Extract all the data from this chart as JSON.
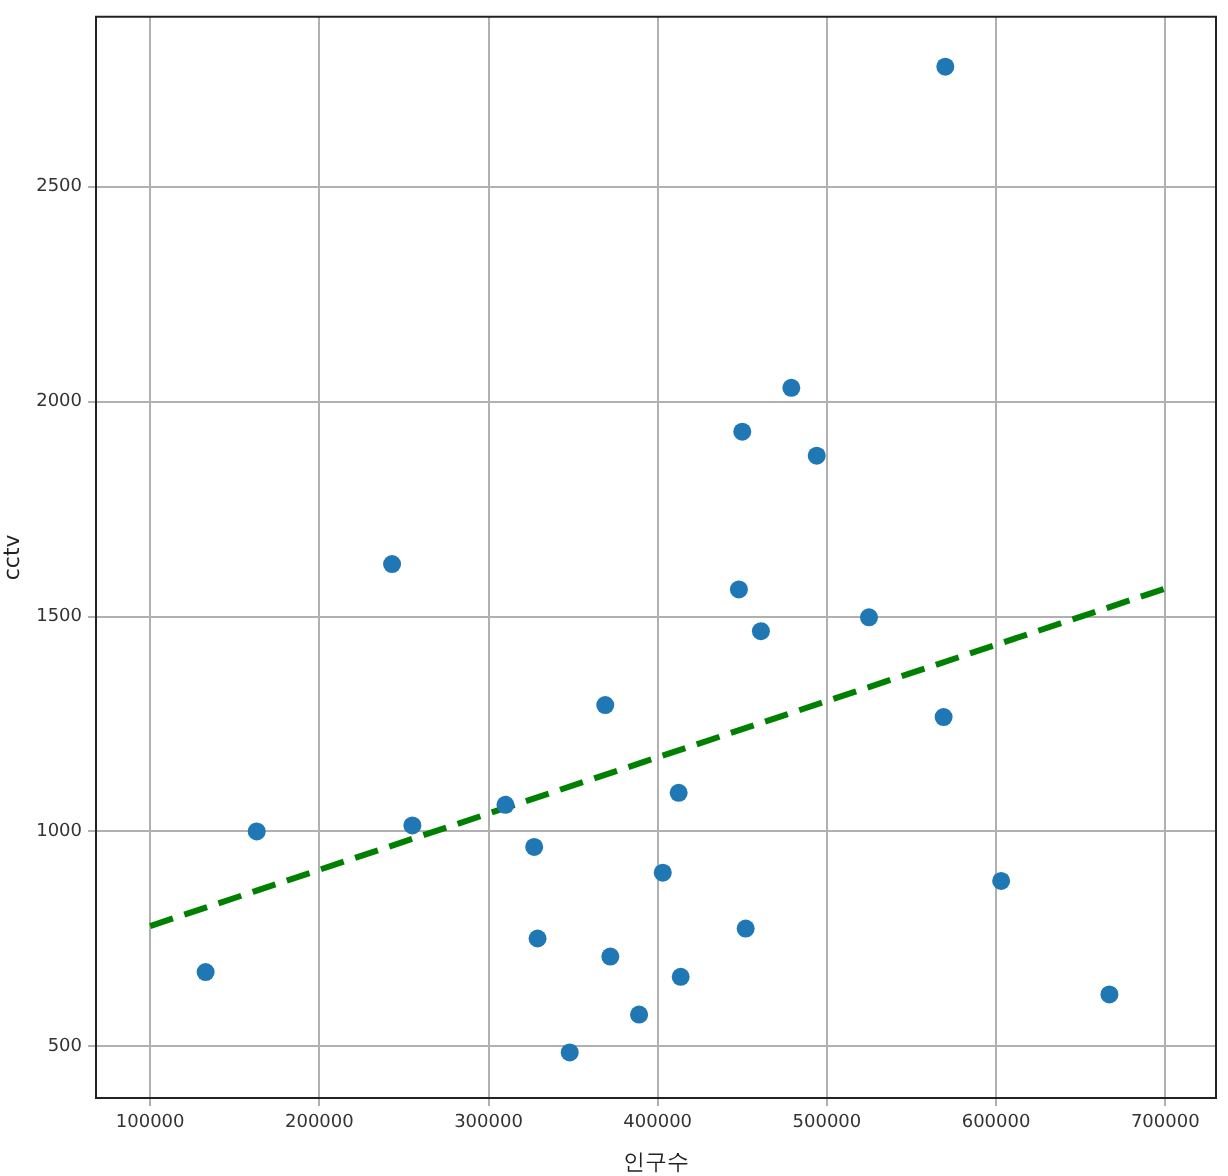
{
  "chart_data": {
    "type": "scatter",
    "xlabel": "인구수",
    "ylabel": "cctv",
    "xlim": [
      68000,
      730000
    ],
    "ylim": [
      380,
      2895
    ],
    "xticks": [
      100000,
      200000,
      300000,
      400000,
      500000,
      600000,
      700000
    ],
    "yticks": [
      500,
      1000,
      1500,
      2000,
      2500
    ],
    "grid": true,
    "marker": "circle",
    "series": [
      {
        "color": "#1f77b4",
        "x": [
          132800,
          163000,
          255000,
          310000,
          327000,
          329000,
          369000,
          372000,
          389000,
          348000,
          403000,
          412400,
          413600,
          448000,
          461000,
          524900,
          452000,
          569000,
          603000,
          667000,
          570000,
          479000,
          450000,
          494000,
          243000
        ],
        "values": [
          673,
          1000,
          1014,
          1062,
          964,
          751,
          1294,
          709,
          574,
          486,
          904,
          1090,
          662,
          1563,
          1466,
          1498,
          774,
          1266,
          885,
          621,
          2779,
          2032,
          1930,
          1874,
          1622
        ]
      },
      {
        "type": "line",
        "color": "#008000",
        "line_style": "dashed",
        "marker": "none",
        "x": [
          100000,
          700000
        ],
        "values": [
          780,
          1565
        ]
      }
    ]
  }
}
